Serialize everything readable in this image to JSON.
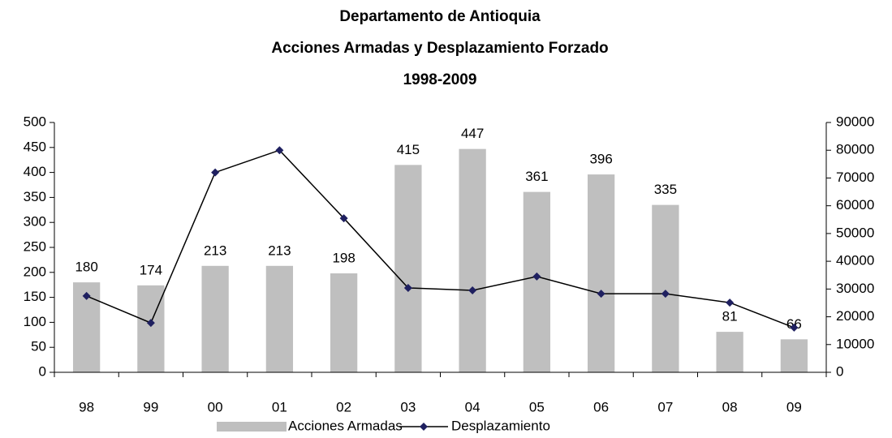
{
  "chart_data": {
    "type": "bar_line",
    "title": [
      "Departamento de Antioquia",
      "Acciones Armadas y Desplazamiento  Forzado",
      "1998-2009"
    ],
    "categories": [
      "98",
      "99",
      "00",
      "01",
      "02",
      "03",
      "04",
      "05",
      "06",
      "07",
      "08",
      "09"
    ],
    "series": [
      {
        "name": "Acciones Armadas",
        "color": "#bfbfbf",
        "type": "bar",
        "values": [
          180,
          174,
          213,
          213,
          198,
          415,
          447,
          361,
          396,
          335,
          81,
          66
        ]
      },
      {
        "name": "Desplazamiento",
        "color": "#000000",
        "marker_color": "#1f2060",
        "type": "line",
        "axis": "y2",
        "values": [
          27500,
          17800,
          72000,
          80000,
          55500,
          30400,
          29500,
          34500,
          28300,
          28300,
          25100,
          16100
        ]
      }
    ],
    "ylim": [
      0,
      500
    ],
    "yticks": [
      0,
      50,
      100,
      150,
      200,
      250,
      300,
      350,
      400,
      450,
      500
    ],
    "y2lim": [
      0,
      90000
    ],
    "y2ticks": [
      0,
      10000,
      20000,
      30000,
      40000,
      50000,
      60000,
      70000,
      80000,
      90000
    ],
    "legend": "bottom"
  }
}
